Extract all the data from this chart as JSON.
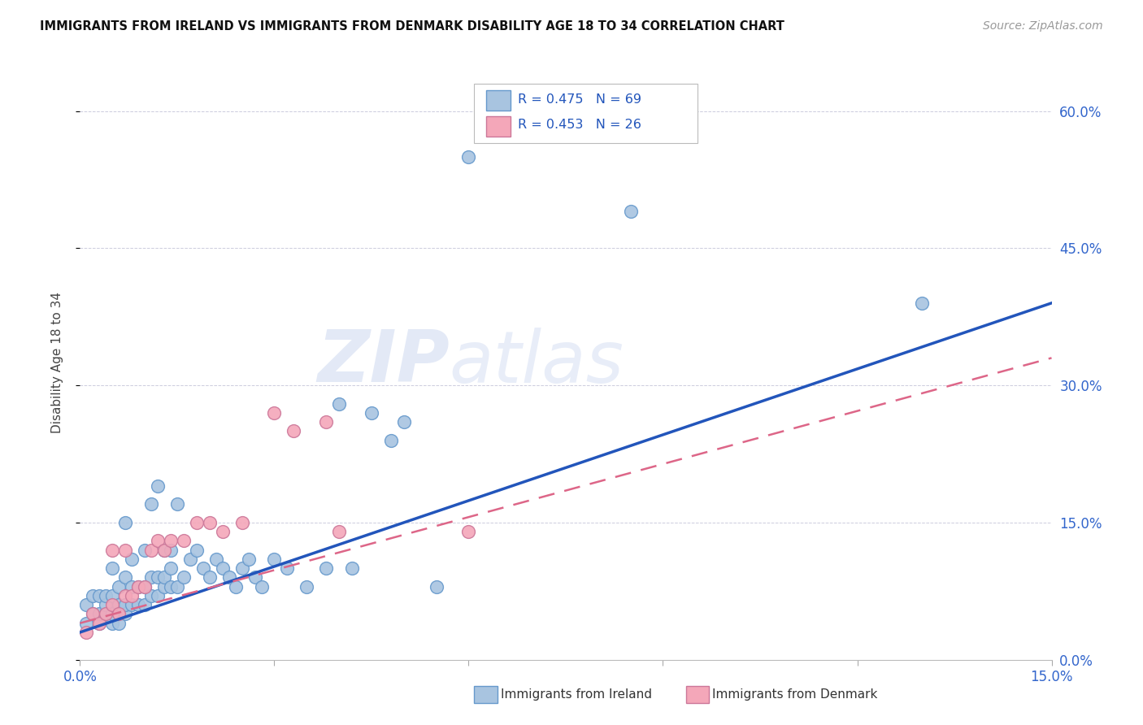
{
  "title": "IMMIGRANTS FROM IRELAND VS IMMIGRANTS FROM DENMARK DISABILITY AGE 18 TO 34 CORRELATION CHART",
  "source": "Source: ZipAtlas.com",
  "ylabel": "Disability Age 18 to 34",
  "xlim": [
    0.0,
    0.15
  ],
  "ylim": [
    0.0,
    0.65
  ],
  "xticks": [
    0.0,
    0.03,
    0.06,
    0.09,
    0.12,
    0.15
  ],
  "yticks": [
    0.0,
    0.15,
    0.3,
    0.45,
    0.6
  ],
  "ytick_labels_right": [
    "0.0%",
    "15.0%",
    "30.0%",
    "45.0%",
    "60.0%"
  ],
  "xtick_labels": [
    "0.0%",
    "",
    "",
    "",
    "",
    "15.0%"
  ],
  "ireland_color": "#a8c4e0",
  "ireland_edge_color": "#6699cc",
  "denmark_color": "#f4a7b9",
  "denmark_edge_color": "#cc7799",
  "ireland_line_color": "#2255bb",
  "denmark_line_color": "#dd6688",
  "ireland_R": 0.475,
  "ireland_N": 69,
  "denmark_R": 0.453,
  "denmark_N": 26,
  "watermark": "ZIPatlas",
  "ireland_x": [
    0.001,
    0.001,
    0.002,
    0.002,
    0.003,
    0.003,
    0.003,
    0.004,
    0.004,
    0.004,
    0.005,
    0.005,
    0.005,
    0.005,
    0.006,
    0.006,
    0.006,
    0.007,
    0.007,
    0.007,
    0.007,
    0.008,
    0.008,
    0.008,
    0.009,
    0.009,
    0.01,
    0.01,
    0.01,
    0.011,
    0.011,
    0.011,
    0.012,
    0.012,
    0.012,
    0.013,
    0.013,
    0.013,
    0.014,
    0.014,
    0.014,
    0.015,
    0.015,
    0.016,
    0.017,
    0.018,
    0.019,
    0.02,
    0.021,
    0.022,
    0.023,
    0.024,
    0.025,
    0.026,
    0.027,
    0.028,
    0.03,
    0.032,
    0.035,
    0.038,
    0.04,
    0.042,
    0.045,
    0.048,
    0.05,
    0.055,
    0.06,
    0.085,
    0.13
  ],
  "ireland_y": [
    0.04,
    0.06,
    0.05,
    0.07,
    0.04,
    0.05,
    0.07,
    0.05,
    0.06,
    0.07,
    0.04,
    0.05,
    0.07,
    0.1,
    0.04,
    0.06,
    0.08,
    0.05,
    0.06,
    0.09,
    0.15,
    0.06,
    0.08,
    0.11,
    0.06,
    0.08,
    0.06,
    0.08,
    0.12,
    0.07,
    0.09,
    0.17,
    0.07,
    0.09,
    0.19,
    0.08,
    0.09,
    0.12,
    0.08,
    0.1,
    0.12,
    0.08,
    0.17,
    0.09,
    0.11,
    0.12,
    0.1,
    0.09,
    0.11,
    0.1,
    0.09,
    0.08,
    0.1,
    0.11,
    0.09,
    0.08,
    0.11,
    0.1,
    0.08,
    0.1,
    0.28,
    0.1,
    0.27,
    0.24,
    0.26,
    0.08,
    0.55,
    0.49,
    0.39
  ],
  "denmark_x": [
    0.001,
    0.002,
    0.003,
    0.004,
    0.005,
    0.005,
    0.006,
    0.007,
    0.007,
    0.008,
    0.009,
    0.01,
    0.011,
    0.012,
    0.013,
    0.014,
    0.016,
    0.018,
    0.02,
    0.022,
    0.025,
    0.03,
    0.033,
    0.038,
    0.04,
    0.06
  ],
  "denmark_y": [
    0.03,
    0.05,
    0.04,
    0.05,
    0.06,
    0.12,
    0.05,
    0.07,
    0.12,
    0.07,
    0.08,
    0.08,
    0.12,
    0.13,
    0.12,
    0.13,
    0.13,
    0.15,
    0.15,
    0.14,
    0.15,
    0.27,
    0.25,
    0.26,
    0.14,
    0.14
  ],
  "ireland_line_x": [
    0.0,
    0.15
  ],
  "ireland_line_y": [
    0.03,
    0.39
  ],
  "denmark_line_x": [
    0.0,
    0.15
  ],
  "denmark_line_y": [
    0.04,
    0.33
  ]
}
